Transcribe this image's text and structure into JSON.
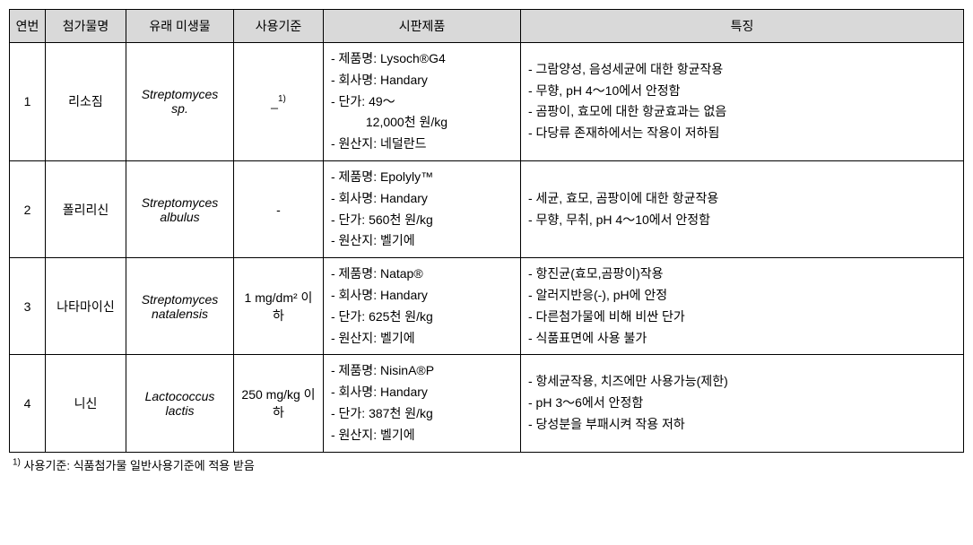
{
  "table": {
    "headers": {
      "num": "연번",
      "name": "첨가물명",
      "micro": "유래 미생물",
      "criteria": "사용기준",
      "product": "시판제품",
      "feature": "특징"
    },
    "header_bg": "#d9d9d9",
    "border_color": "#000000",
    "rows": [
      {
        "num": "1",
        "name": "리소짐",
        "micro": "Streptomyces sp.",
        "criteria": "_",
        "criteria_sup": "1)",
        "product": [
          "- 제품명: Lysoch®G4",
          "- 회사명: Handary",
          "- 단가: 49～",
          "          12,000천 원/kg",
          "- 원산지: 네덜란드"
        ],
        "feature": [
          "- 그람양성, 음성세균에 대한 항균작용",
          "- 무향, pH 4～10에서 안정함",
          "- 곰팡이, 효모에 대한 항균효과는 없음",
          "- 다당류 존재하에서는 작용이 저하됨"
        ]
      },
      {
        "num": "2",
        "name": "폴리리신",
        "micro": "Streptomyces albulus",
        "criteria": "-",
        "criteria_sup": "",
        "product": [
          "- 제품명: Epolyly™",
          "- 회사명: Handary",
          "- 단가: 560천 원/kg",
          "- 원산지: 벨기에"
        ],
        "feature": [
          "- 세균, 효모, 곰팡이에 대한 항균작용",
          "- 무향, 무취, pH 4～10에서 안정함"
        ]
      },
      {
        "num": "3",
        "name": "나타마이신",
        "micro": "Streptomyces natalensis",
        "criteria": "1 mg/dm² 이하",
        "criteria_sup": "",
        "product": [
          "- 제품명: Natap®",
          "- 회사명: Handary",
          "- 단가: 625천 원/kg",
          "- 원산지: 벨기에"
        ],
        "feature": [
          "- 항진균(효모,곰팡이)작용",
          "- 알러지반응(-), pH에 안정",
          "- 다른첨가물에 비해 비싼 단가",
          "- 식품표면에 사용 불가"
        ]
      },
      {
        "num": "4",
        "name": "니신",
        "micro": "Lactococcus lactis",
        "criteria": "250 mg/kg 이하",
        "criteria_sup": "",
        "product": [
          "- 제품명: NisinA®P",
          "- 회사명: Handary",
          "- 단가: 387천 원/kg",
          "- 원산지: 벨기에"
        ],
        "feature": [
          "- 항세균작용, 치즈에만 사용가능(제한)",
          "- pH 3～6에서 안정함",
          "- 당성분을 부패시켜 작용 저하"
        ]
      }
    ]
  },
  "footnote": {
    "sup": "1)",
    "text": " 사용기준: 식품첨가물 일반사용기준에 적용 받음"
  }
}
